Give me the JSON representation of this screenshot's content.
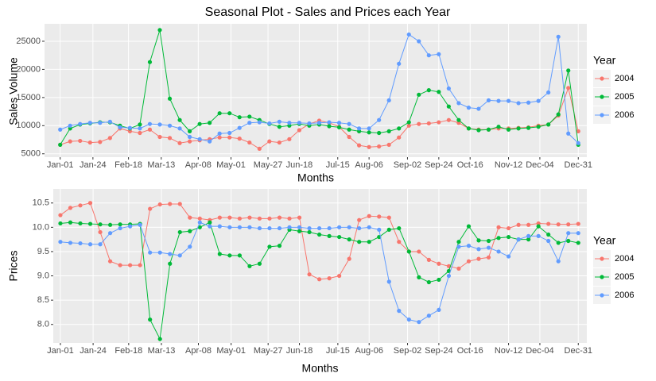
{
  "chart_data": [
    {
      "type": "line",
      "title": "Seasonal Plot - Sales and Prices each Year",
      "x_label": "Months",
      "y_label": "Sales Volume",
      "legend_title": "Year",
      "legend": "right",
      "grid": true,
      "x": [
        0,
        7,
        14,
        21,
        28,
        35,
        42,
        49,
        56,
        63,
        70,
        77,
        84,
        91,
        98,
        105,
        112,
        119,
        126,
        133,
        140,
        147,
        154,
        161,
        168,
        175,
        182,
        189,
        196,
        203,
        210,
        217,
        224,
        231,
        238,
        245,
        252,
        259,
        266,
        273,
        280,
        287,
        294,
        301,
        308,
        315,
        322,
        329,
        336,
        343,
        350,
        357,
        364
      ],
      "xlim": [
        -11,
        370
      ],
      "xticks": [
        {
          "value": 0,
          "label": "Jan-01"
        },
        {
          "value": 23,
          "label": "Jan-24"
        },
        {
          "value": 48,
          "label": "Feb-18"
        },
        {
          "value": 71,
          "label": "Mar-13"
        },
        {
          "value": 97,
          "label": "Apr-08"
        },
        {
          "value": 120,
          "label": "May-01"
        },
        {
          "value": 146,
          "label": "May-27"
        },
        {
          "value": 168,
          "label": "Jun-18"
        },
        {
          "value": 195,
          "label": "Jul-15"
        },
        {
          "value": 217,
          "label": "Aug-06"
        },
        {
          "value": 244,
          "label": "Sep-02"
        },
        {
          "value": 266,
          "label": "Sep-24"
        },
        {
          "value": 288,
          "label": "Oct-16"
        },
        {
          "value": 315,
          "label": "Nov-12"
        },
        {
          "value": 337,
          "label": "Dec-04"
        },
        {
          "value": 364,
          "label": "Dec-31"
        }
      ],
      "ylim": [
        4400,
        28100
      ],
      "yticks": [
        5000,
        10000,
        15000,
        20000,
        25000
      ],
      "series": [
        {
          "name": "2004",
          "color": "#F8766D",
          "values": [
            6600,
            7200,
            7300,
            7000,
            7100,
            7800,
            9500,
            9000,
            8700,
            9300,
            8000,
            7800,
            6900,
            7200,
            7400,
            7600,
            7900,
            7900,
            7700,
            7000,
            5900,
            7200,
            7000,
            7600,
            9200,
            10300,
            10900,
            10500,
            9800,
            8000,
            6500,
            6200,
            6300,
            6600,
            7900,
            10000,
            10300,
            10400,
            10600,
            11000,
            10500,
            9500,
            9300,
            9300,
            9500,
            9500,
            9600,
            9700,
            10000,
            10200,
            11800,
            16700,
            9000
          ]
        },
        {
          "name": "2005",
          "color": "#00BA38",
          "values": [
            6600,
            9500,
            10200,
            10400,
            10600,
            10600,
            10000,
            9500,
            10200,
            21300,
            27000,
            14800,
            11000,
            9000,
            10300,
            10500,
            12200,
            12200,
            11500,
            11600,
            11000,
            10300,
            9800,
            10000,
            10300,
            10000,
            10200,
            9900,
            9700,
            9300,
            9000,
            8800,
            8700,
            9000,
            9500,
            10600,
            15500,
            16300,
            16000,
            13400,
            11000,
            9500,
            9200,
            9300,
            9800,
            9300,
            9500,
            9600,
            9800,
            10200,
            12000,
            19800,
            6600
          ]
        },
        {
          "name": "2006",
          "color": "#619CFF",
          "values": [
            9300,
            10000,
            10300,
            10500,
            10500,
            10700,
            9700,
            9600,
            9500,
            10300,
            10200,
            10000,
            9500,
            8000,
            7600,
            7200,
            8600,
            8700,
            9600,
            10500,
            10600,
            10400,
            10700,
            10500,
            10500,
            10400,
            10500,
            10600,
            10500,
            10300,
            9500,
            9500,
            11000,
            14500,
            21000,
            26200,
            25000,
            22500,
            22700,
            16600,
            14000,
            13200,
            13000,
            14500,
            14400,
            14400,
            14000,
            14100,
            14400,
            15900,
            25800,
            8600,
            6900
          ]
        }
      ]
    },
    {
      "type": "line",
      "x_label": "Months",
      "y_label": "Prices",
      "legend_title": "Year",
      "legend": "right",
      "grid": true,
      "x": [
        0,
        7,
        14,
        21,
        28,
        35,
        42,
        49,
        56,
        63,
        70,
        77,
        84,
        91,
        98,
        105,
        112,
        119,
        126,
        133,
        140,
        147,
        154,
        161,
        168,
        175,
        182,
        189,
        196,
        203,
        210,
        217,
        224,
        231,
        238,
        245,
        252,
        259,
        266,
        273,
        280,
        287,
        294,
        301,
        308,
        315,
        322,
        329,
        336,
        343,
        350,
        357,
        364
      ],
      "xlim": [
        -5,
        370
      ],
      "xticks": [
        {
          "value": 0,
          "label": "Jan-01"
        },
        {
          "value": 23,
          "label": "Jan-24"
        },
        {
          "value": 48,
          "label": "Feb-18"
        },
        {
          "value": 71,
          "label": "Mar-13"
        },
        {
          "value": 97,
          "label": "Apr-08"
        },
        {
          "value": 120,
          "label": "May-01"
        },
        {
          "value": 146,
          "label": "May-27"
        },
        {
          "value": 168,
          "label": "Jun-18"
        },
        {
          "value": 195,
          "label": "Jul-15"
        },
        {
          "value": 217,
          "label": "Aug-06"
        },
        {
          "value": 244,
          "label": "Sep-02"
        },
        {
          "value": 266,
          "label": "Sep-24"
        },
        {
          "value": 288,
          "label": "Oct-16"
        },
        {
          "value": 315,
          "label": "Nov-12"
        },
        {
          "value": 337,
          "label": "Dec-04"
        },
        {
          "value": 364,
          "label": "Dec-31"
        }
      ],
      "ylim": [
        7.62,
        10.79
      ],
      "yticks": [
        {
          "value": 8,
          "label": "8.0"
        },
        8.5,
        {
          "value": 9,
          "label": "9.0"
        },
        9.5,
        {
          "value": 10,
          "label": "10.0"
        },
        10.5
      ],
      "series": [
        {
          "name": "2004",
          "color": "#F8766D",
          "values": [
            10.25,
            10.4,
            10.45,
            10.5,
            9.9,
            9.3,
            9.22,
            9.22,
            9.22,
            10.38,
            10.47,
            10.48,
            10.48,
            10.2,
            10.18,
            10.15,
            10.2,
            10.2,
            10.18,
            10.2,
            10.18,
            10.18,
            10.2,
            10.18,
            10.2,
            9.03,
            8.93,
            8.95,
            9.0,
            9.35,
            10.15,
            10.23,
            10.22,
            10.2,
            9.7,
            9.5,
            9.5,
            9.33,
            9.25,
            9.2,
            9.15,
            9.3,
            9.35,
            9.38,
            10.0,
            9.98,
            10.05,
            10.05,
            10.08,
            10.07,
            10.06,
            10.06,
            10.07
          ]
        },
        {
          "name": "2005",
          "color": "#00BA38",
          "values": [
            10.08,
            10.1,
            10.08,
            10.07,
            10.06,
            10.05,
            10.06,
            10.06,
            10.07,
            8.1,
            7.7,
            9.25,
            9.9,
            9.92,
            10.0,
            10.1,
            9.45,
            9.42,
            9.42,
            9.2,
            9.25,
            9.6,
            9.62,
            9.95,
            9.92,
            9.9,
            9.85,
            9.82,
            9.8,
            9.75,
            9.7,
            9.7,
            9.8,
            9.95,
            9.98,
            9.5,
            8.97,
            8.87,
            8.92,
            9.1,
            9.7,
            10.02,
            9.73,
            9.72,
            9.78,
            9.8,
            9.75,
            9.75,
            10.02,
            9.85,
            9.68,
            9.72,
            9.68
          ]
        },
        {
          "name": "2006",
          "color": "#619CFF",
          "values": [
            9.7,
            9.68,
            9.67,
            9.65,
            9.65,
            9.88,
            9.98,
            10.02,
            10.05,
            9.48,
            9.48,
            9.45,
            9.42,
            9.6,
            10.1,
            10.02,
            10.02,
            10.0,
            10.0,
            10.0,
            9.98,
            9.98,
            9.98,
            10.0,
            10.0,
            9.98,
            9.98,
            9.98,
            10.0,
            10.0,
            9.98,
            10.0,
            9.95,
            8.88,
            8.28,
            8.1,
            8.05,
            8.18,
            8.3,
            9.0,
            9.6,
            9.62,
            9.55,
            9.58,
            9.5,
            9.4,
            9.75,
            9.82,
            9.82,
            9.72,
            9.3,
            9.88,
            9.88
          ]
        }
      ]
    }
  ]
}
